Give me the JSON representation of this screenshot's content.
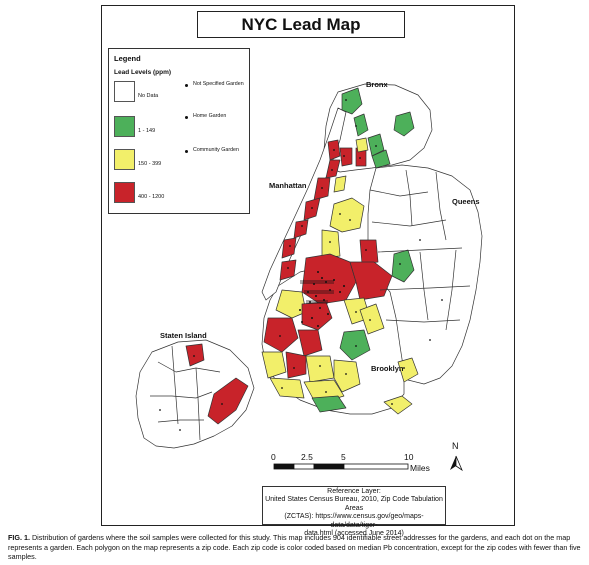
{
  "title": "NYC Lead Map",
  "legend": {
    "title": "Legend",
    "subtitle": "Lead Levels (ppm)",
    "levels": [
      {
        "label": "No Data",
        "color": "#ffffff"
      },
      {
        "label": "1 - 149",
        "color": "#4db05a"
      },
      {
        "label": "150 - 399",
        "color": "#f2ef6a"
      },
      {
        "label": "400 - 1200",
        "color": "#c8232a"
      }
    ],
    "garden_types": [
      "Not Specified Garden",
      "Home Garden",
      "Community Garden"
    ]
  },
  "places": {
    "bronx": "Bronx",
    "manhattan": "Manhattan",
    "queens": "Queens",
    "staten_island": "Staten Island",
    "brooklyn": "Brooklyn"
  },
  "scale": {
    "ticks": [
      "0",
      "2.5",
      "5",
      "10"
    ],
    "unit": "Miles"
  },
  "north": "N",
  "reference": {
    "line1": "Reference Layer:",
    "line2": "United States Census Bureau, 2010, Zip Code Tabulation Areas",
    "line3": "(ZCTAS): https://www.census.gov/geo/maps-data/data/tiger-",
    "line4": "data.html (accessed June 2014)"
  },
  "caption": {
    "label": "FIG. 1.",
    "text": "Distribution of gardens where the soil samples were collected for this study. This map includes 904 identifiable street addresses for the gardens, and each dot on the map represents a garden. Each polygon on the map represents a zip code. Each zip code is color coded based on median Pb concentration, except for the zip codes with fewer than five samples."
  },
  "colors": {
    "no_data": "#ffffff",
    "low": "#4db05a",
    "medium": "#f2ef6a",
    "high": "#c8232a",
    "outline": "#333333"
  }
}
